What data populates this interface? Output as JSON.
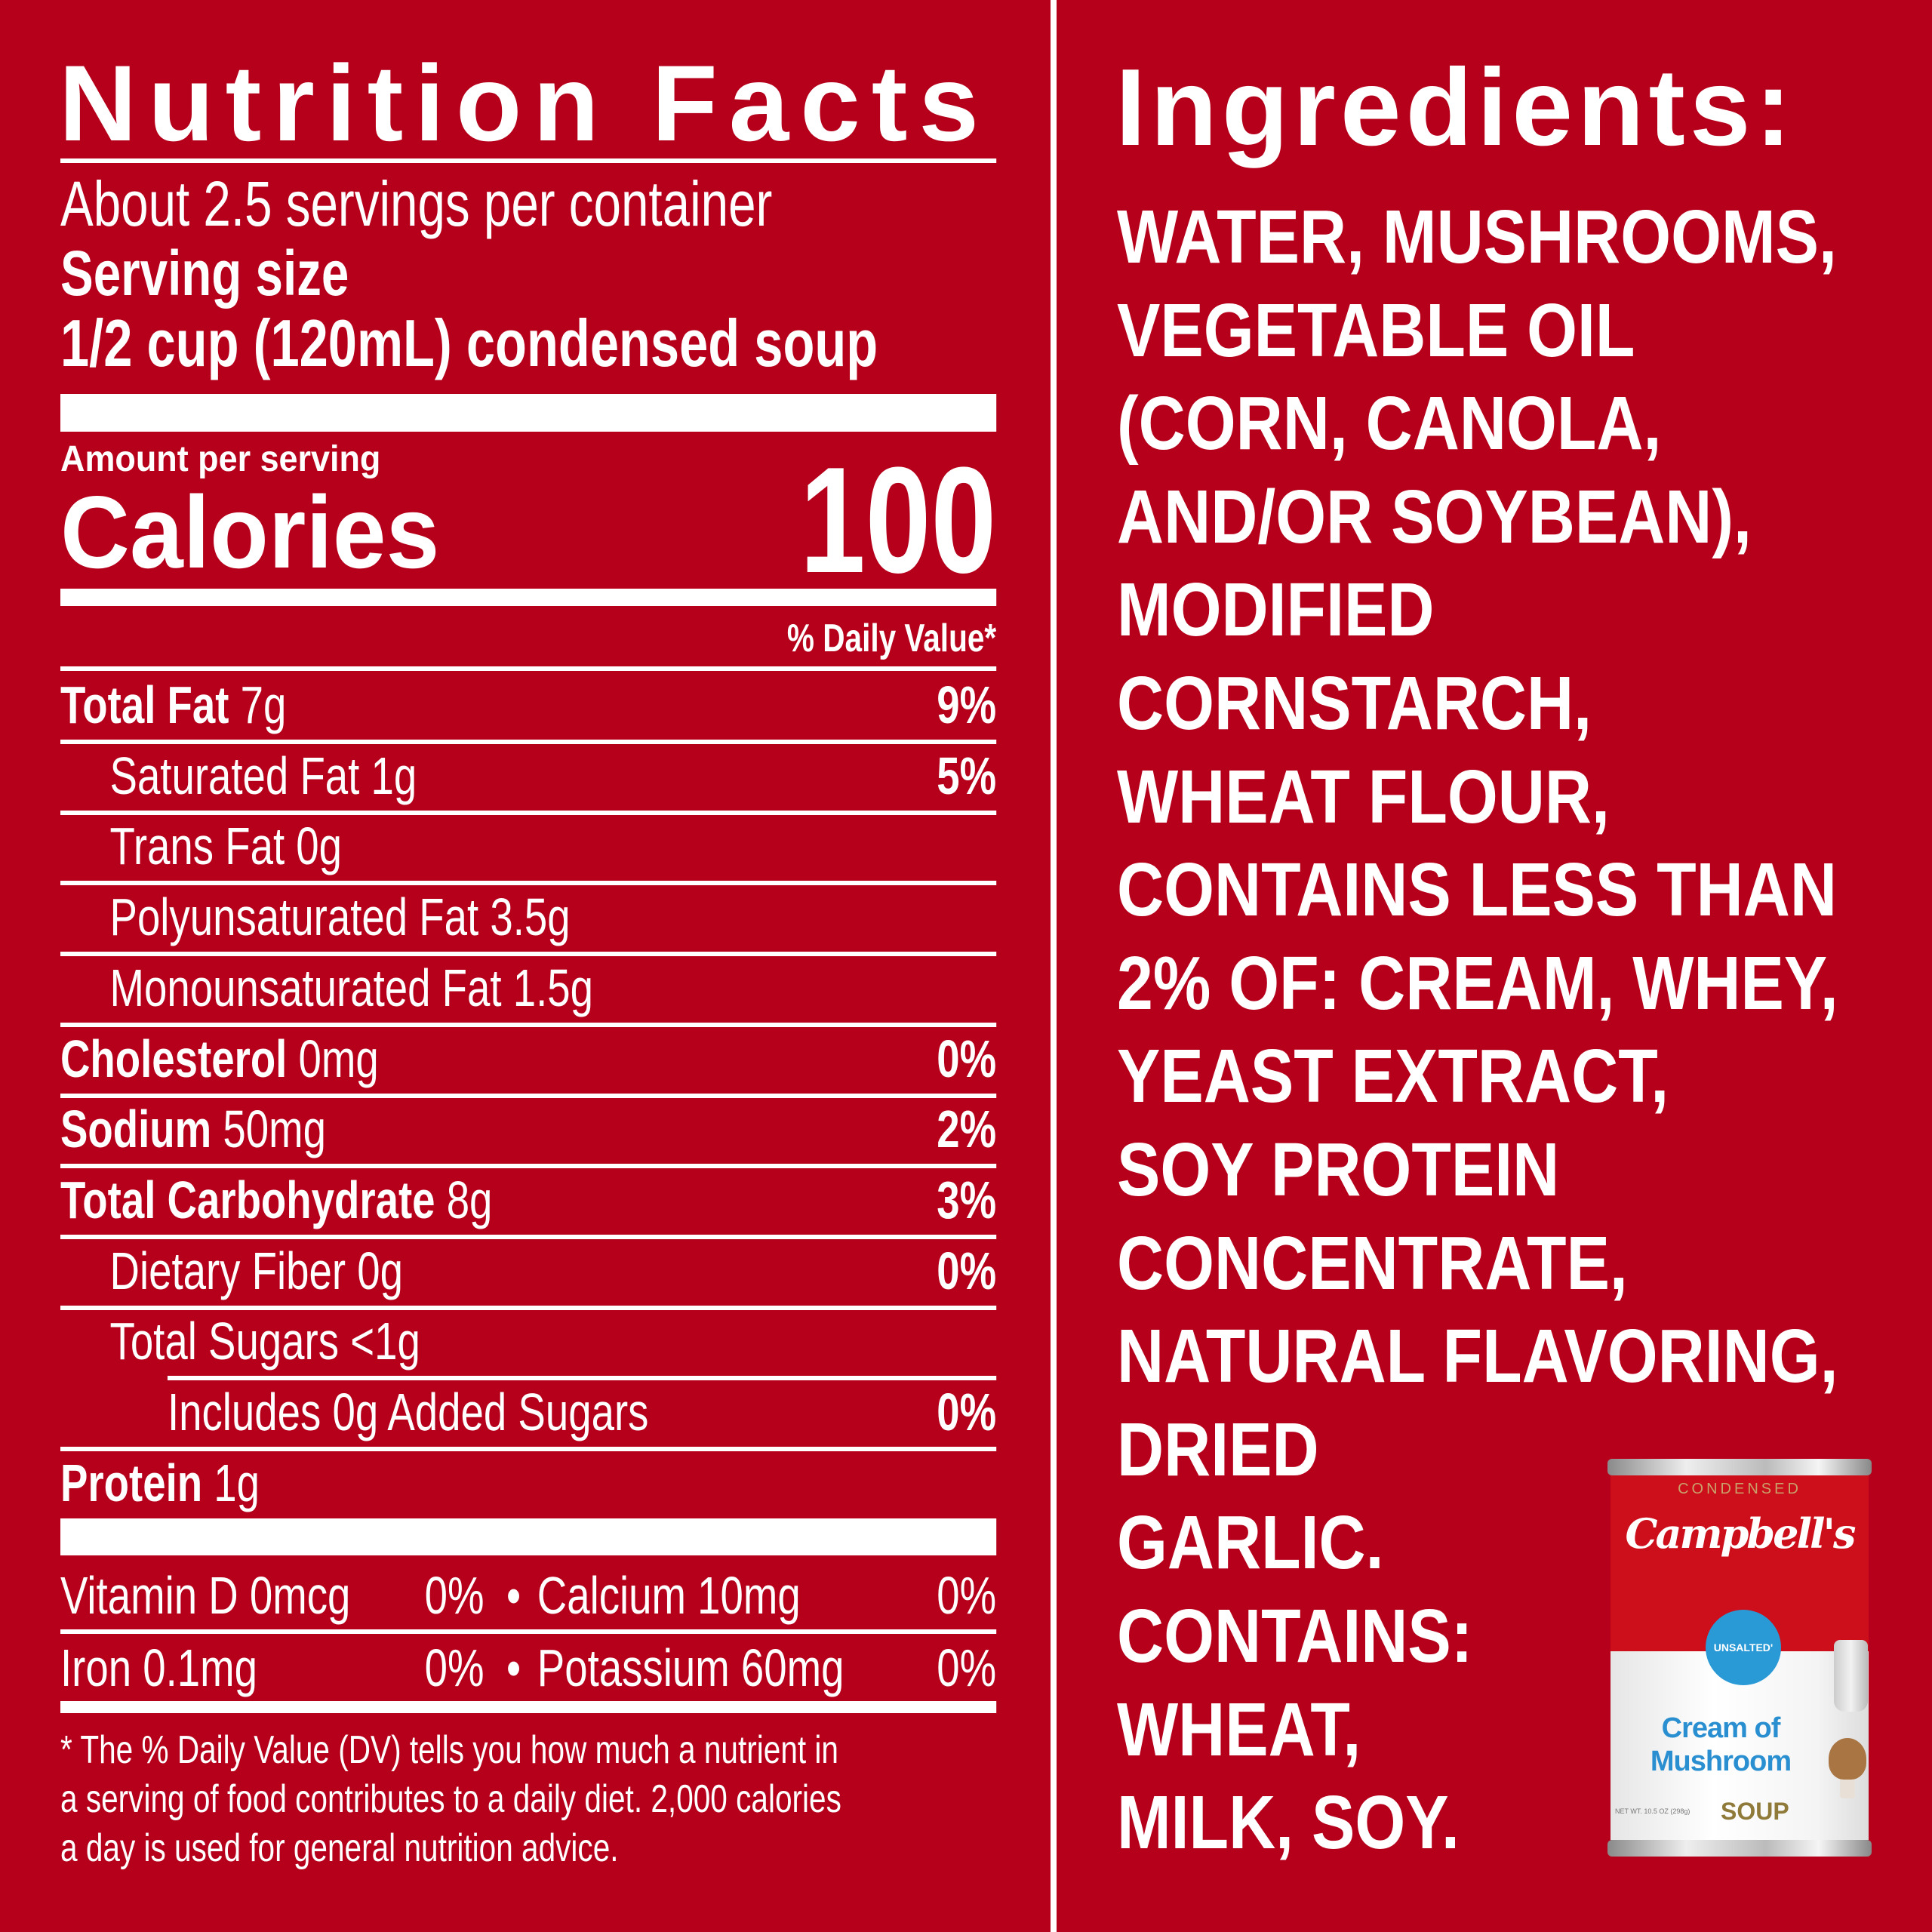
{
  "colors": {
    "background": "#b6001b",
    "text": "#ffffff"
  },
  "nutrition": {
    "title": "Nutrition Facts",
    "servings": "About 2.5 servings per container",
    "serving_size_label": "Serving size",
    "serving_size_value": "1/2 cup (120mL) condensed soup",
    "amount_per_serving": "Amount per serving",
    "calories_label": "Calories",
    "calories_value": "100",
    "dv_header": "% Daily Value*",
    "rows": [
      {
        "name": "Total Fat",
        "amount": "7g",
        "dv": "9%"
      },
      {
        "name": "Saturated Fat",
        "amount": "1g",
        "dv": "5%"
      },
      {
        "name": "Trans Fat",
        "amount": "0g",
        "dv": ""
      },
      {
        "name": "Polyunsaturated Fat",
        "amount": "3.5g",
        "dv": ""
      },
      {
        "name": "Monounsaturated Fat",
        "amount": "1.5g",
        "dv": ""
      },
      {
        "name": "Cholesterol",
        "amount": "0mg",
        "dv": "0%"
      },
      {
        "name": "Sodium",
        "amount": "50mg",
        "dv": "2%"
      },
      {
        "name": "Total Carbohydrate",
        "amount": "8g",
        "dv": "3%"
      },
      {
        "name": "Dietary Fiber",
        "amount": "0g",
        "dv": "0%"
      },
      {
        "name": "Total Sugars",
        "amount": "<1g",
        "dv": ""
      },
      {
        "name": "Includes 0g Added Sugars",
        "amount": "",
        "dv": "0%"
      },
      {
        "name": "Protein",
        "amount": "1g",
        "dv": ""
      }
    ],
    "vitamins": [
      {
        "a": "Vitamin D 0mcg",
        "a_dv": "0%",
        "b": "Calcium 10mg",
        "b_dv": "0%"
      },
      {
        "a": "Iron 0.1mg",
        "a_dv": "0%",
        "b": "Potassium 60mg",
        "b_dv": "0%"
      }
    ],
    "bullet": "•",
    "footnote": [
      "* The % Daily Value (DV) tells you how much a nutrient in",
      "a serving of food contributes to a daily diet. 2,000 calories",
      "a day is used for general nutrition advice."
    ]
  },
  "ingredients": {
    "title": "Ingredients:",
    "lines": [
      "WATER, MUSHROOMS,",
      "VEGETABLE OIL",
      "(CORN, CANOLA,",
      "AND/OR SOYBEAN),",
      "MODIFIED",
      "CORNSTARCH,",
      "WHEAT FLOUR,",
      "CONTAINS LESS THAN",
      "2% OF: CREAM, WHEY,",
      "YEAST EXTRACT,",
      "SOY PROTEIN",
      "CONCENTRATE,",
      "NATURAL FLAVORING,",
      "DRIED",
      "GARLIC.",
      "CONTAINS:",
      "WHEAT,",
      "MILK, SOY."
    ]
  },
  "can": {
    "condensed": "CONDENSED",
    "brand": "Campbell's",
    "badge": "UNSALTED'",
    "variety": [
      "Cream of",
      "Mushroom"
    ],
    "soup": "SOUP",
    "net_wt": "NET WT. 10.5 OZ (298g)",
    "badge_color": "#2a9ad6",
    "can_red": "#cc0f1a"
  }
}
